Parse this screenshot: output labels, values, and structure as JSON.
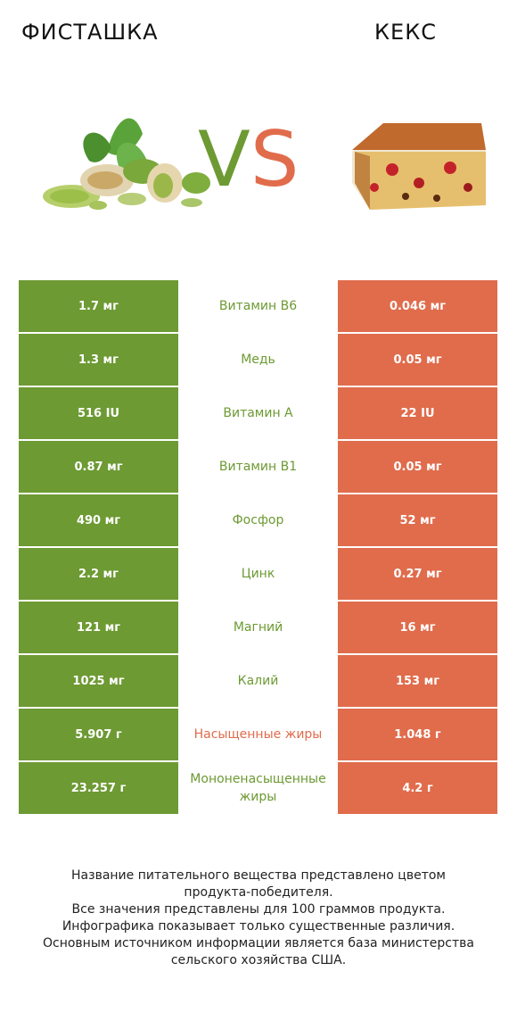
{
  "header": {
    "left_title": "ФИСТАШКА",
    "right_title": "КЕКС"
  },
  "vs": {
    "v": "V",
    "s": "S"
  },
  "colors": {
    "winner_left": "#6d9a33",
    "winner_right": "#e06c4c"
  },
  "rows": [
    {
      "left": "1.7 мг",
      "label": "Витамин B6",
      "right": "0.046 мг",
      "winner": "left"
    },
    {
      "left": "1.3 мг",
      "label": "Медь",
      "right": "0.05 мг",
      "winner": "left"
    },
    {
      "left": "516 IU",
      "label": "Витамин A",
      "right": "22 IU",
      "winner": "left"
    },
    {
      "left": "0.87 мг",
      "label": "Витамин B1",
      "right": "0.05 мг",
      "winner": "left"
    },
    {
      "left": "490 мг",
      "label": "Фосфор",
      "right": "52 мг",
      "winner": "left"
    },
    {
      "left": "2.2 мг",
      "label": "Цинк",
      "right": "0.27 мг",
      "winner": "left"
    },
    {
      "left": "121 мг",
      "label": "Магний",
      "right": "16 мг",
      "winner": "left"
    },
    {
      "left": "1025 мг",
      "label": "Калий",
      "right": "153 мг",
      "winner": "left"
    },
    {
      "left": "5.907 г",
      "label": "Насыщенные жиры",
      "right": "1.048 г",
      "winner": "right"
    },
    {
      "left": "23.257 г",
      "label": "Мононенасыщенные жиры",
      "right": "4.2 г",
      "winner": "left"
    }
  ],
  "footer": {
    "line1": "Название питательного вещества представлено цветом",
    "line2": "продукта-победителя.",
    "line3": "Все значения представлены для 100 граммов продукта.",
    "line4": "Инфографика показывает только существенные различия.",
    "line5": "Основным источником информации является база министерства",
    "line6": "сельского хозяйства США."
  }
}
